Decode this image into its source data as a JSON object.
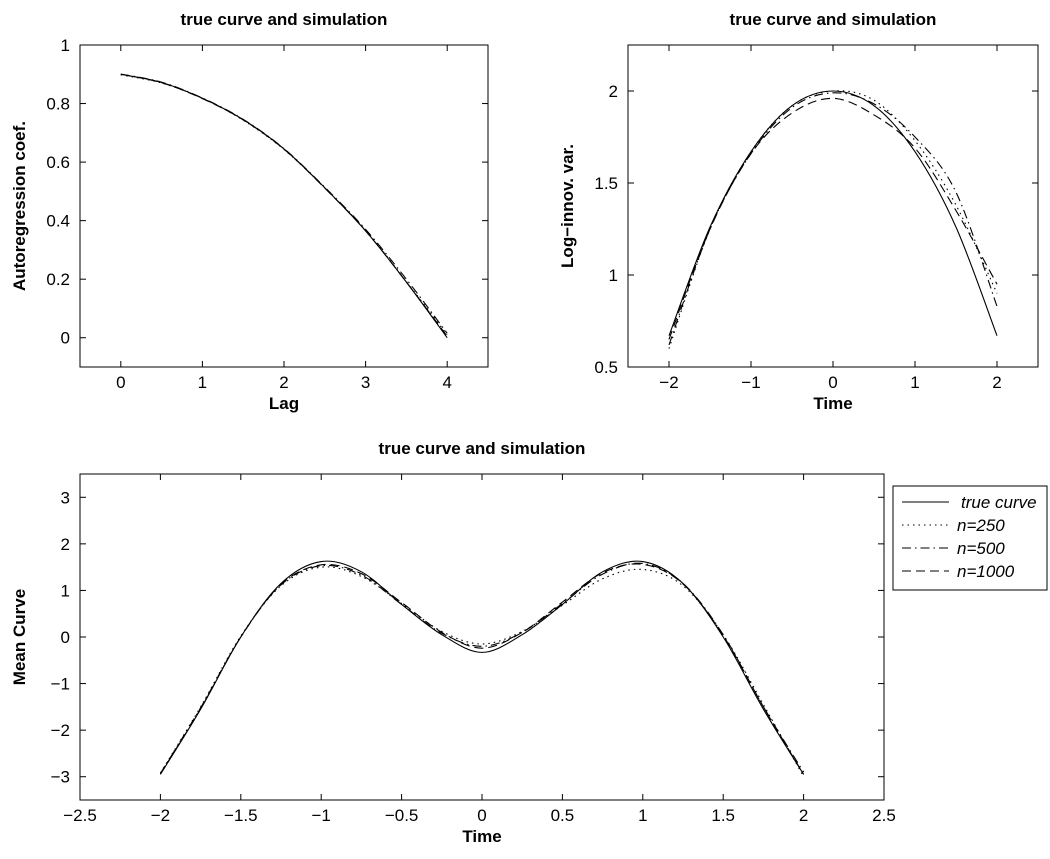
{
  "legend": {
    "position": "outside-right",
    "entries": [
      {
        "label": "true curve",
        "dash": "solid"
      },
      {
        "label": "n=250",
        "dash": "dotted"
      },
      {
        "label": "n=500",
        "dash": "dashdot"
      },
      {
        "label": "n=1000",
        "dash": "dashed"
      }
    ]
  },
  "chart_data": [
    {
      "type": "line",
      "title": "true curve and simulation",
      "xlabel": "Lag",
      "ylabel": "Autoregression coef.",
      "xlim": [
        -0.5,
        4.5
      ],
      "ylim": [
        -0.1,
        1
      ],
      "xticks": [
        0,
        1,
        2,
        3,
        4
      ],
      "yticks": [
        0,
        0.2,
        0.4,
        0.6,
        0.8,
        1
      ],
      "xticklabels": [
        "0",
        "1",
        "2",
        "3",
        "4"
      ],
      "yticklabels": [
        "0",
        "0.2",
        "0.4",
        "0.6",
        "0.8",
        "1"
      ],
      "x": [
        0,
        0.5,
        1,
        1.5,
        2,
        2.5,
        3,
        3.5,
        4
      ],
      "series": [
        {
          "name": "true curve",
          "dash": "solid",
          "values": [
            0.9,
            0.872,
            0.818,
            0.745,
            0.645,
            0.512,
            0.365,
            0.19,
            0.0
          ]
        },
        {
          "name": "n=250",
          "dash": "dotted",
          "values": [
            0.898,
            0.87,
            0.818,
            0.743,
            0.643,
            0.512,
            0.367,
            0.192,
            0.01
          ]
        },
        {
          "name": "n=500",
          "dash": "dashdot",
          "values": [
            0.901,
            0.873,
            0.819,
            0.746,
            0.646,
            0.514,
            0.37,
            0.2,
            0.015
          ]
        },
        {
          "name": "n=1000",
          "dash": "dashed",
          "values": [
            0.9,
            0.871,
            0.817,
            0.744,
            0.644,
            0.511,
            0.365,
            0.19,
            0.005
          ]
        }
      ]
    },
    {
      "type": "line",
      "title": "true curve and simulation",
      "xlabel": "Time",
      "ylabel": "Log−innov. var.",
      "xlim": [
        -2.5,
        2.5
      ],
      "ylim": [
        0.5,
        2.25
      ],
      "xticks": [
        -2,
        -1,
        0,
        1,
        2
      ],
      "yticks": [
        0.5,
        1,
        1.5,
        2
      ],
      "xticklabels": [
        "−2",
        "−1",
        "0",
        "1",
        "2"
      ],
      "yticklabels": [
        "0.5",
        "1",
        "1.5",
        "2"
      ],
      "x": [
        -2,
        -1.5,
        -1,
        -0.5,
        0,
        0.5,
        1,
        1.5,
        2
      ],
      "series": [
        {
          "name": "true curve",
          "dash": "solid",
          "values": [
            0.67,
            1.26,
            1.67,
            1.92,
            2.0,
            1.92,
            1.67,
            1.26,
            0.67
          ]
        },
        {
          "name": "n=250",
          "dash": "dotted",
          "values": [
            0.6,
            1.25,
            1.67,
            1.92,
            2.0,
            1.95,
            1.73,
            1.38,
            0.9
          ]
        },
        {
          "name": "n=500",
          "dash": "dashdot",
          "values": [
            0.62,
            1.25,
            1.66,
            1.91,
            1.99,
            1.93,
            1.75,
            1.45,
            0.83
          ]
        },
        {
          "name": "n=1000",
          "dash": "dashed",
          "values": [
            0.65,
            1.25,
            1.66,
            1.88,
            1.96,
            1.87,
            1.69,
            1.35,
            0.95
          ]
        }
      ]
    },
    {
      "type": "line",
      "title": "true curve and simulation",
      "xlabel": "Time",
      "ylabel": "Mean Curve",
      "xlim": [
        -2.5,
        2.5
      ],
      "ylim": [
        -3.5,
        3.5
      ],
      "xticks": [
        -2.5,
        -2,
        -1.5,
        -1,
        -0.5,
        0,
        0.5,
        1,
        1.5,
        2,
        2.5
      ],
      "yticks": [
        -3,
        -2,
        -1,
        0,
        1,
        2,
        3
      ],
      "xticklabels": [
        "−2.5",
        "−2",
        "−1.5",
        "−1",
        "−0.5",
        "0",
        "0.5",
        "1",
        "1.5",
        "2",
        "2.5"
      ],
      "yticklabels": [
        "−3",
        "−2",
        "−1",
        "0",
        "1",
        "2",
        "3"
      ],
      "x": [
        -2,
        -1.75,
        -1.5,
        -1.25,
        -1,
        -0.75,
        -0.5,
        -0.25,
        0,
        0.25,
        0.5,
        0.75,
        1,
        1.25,
        1.5,
        1.75,
        2
      ],
      "series": [
        {
          "name": "true curve",
          "dash": "solid",
          "values": [
            -2.95,
            -1.55,
            0.0,
            1.15,
            1.62,
            1.4,
            0.7,
            0.05,
            -0.33,
            0.05,
            0.7,
            1.4,
            1.62,
            1.15,
            0.0,
            -1.55,
            -2.95
          ]
        },
        {
          "name": "n=250",
          "dash": "dotted",
          "values": [
            -2.92,
            -1.5,
            0.02,
            1.1,
            1.5,
            1.3,
            0.72,
            0.12,
            -0.15,
            0.12,
            0.68,
            1.25,
            1.45,
            1.1,
            0.05,
            -1.45,
            -3.0
          ]
        },
        {
          "name": "n=500",
          "dash": "dashdot",
          "values": [
            -2.93,
            -1.52,
            0.0,
            1.12,
            1.53,
            1.33,
            0.7,
            0.08,
            -0.2,
            0.1,
            0.72,
            1.35,
            1.58,
            1.15,
            0.05,
            -1.5,
            -2.9
          ]
        },
        {
          "name": "n=1000",
          "dash": "dashed",
          "values": [
            -2.94,
            -1.54,
            0.0,
            1.13,
            1.55,
            1.36,
            0.74,
            0.1,
            -0.24,
            0.1,
            0.75,
            1.38,
            1.56,
            1.14,
            0.03,
            -1.5,
            -2.95
          ]
        }
      ]
    }
  ]
}
